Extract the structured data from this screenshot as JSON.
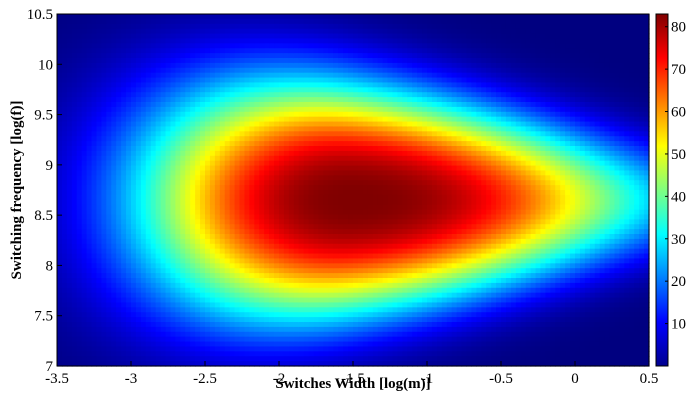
{
  "chart_data": {
    "type": "heatmap",
    "title": "",
    "xlabel": "Switches Width [log(m)]",
    "ylabel": "Switching frequency [log(f)]",
    "xlim": [
      -3.5,
      0.5
    ],
    "ylim": [
      7,
      10.5
    ],
    "x_ticks": [
      "-3.5",
      "-3",
      "-2.5",
      "-2",
      "-1.5",
      "-1",
      "-0.5",
      "0",
      "0.5"
    ],
    "y_ticks": [
      "7",
      "7.5",
      "8",
      "8.5",
      "9",
      "9.5",
      "10",
      "10.5"
    ],
    "colorbar": {
      "ticks": [
        "10",
        "20",
        "30",
        "40",
        "50",
        "60",
        "70",
        "80"
      ],
      "range": [
        0,
        83
      ],
      "colormap": "jet"
    },
    "z_description_peak": {
      "x": -1.5,
      "y": 8.65,
      "z": 83
    },
    "grid": false
  }
}
